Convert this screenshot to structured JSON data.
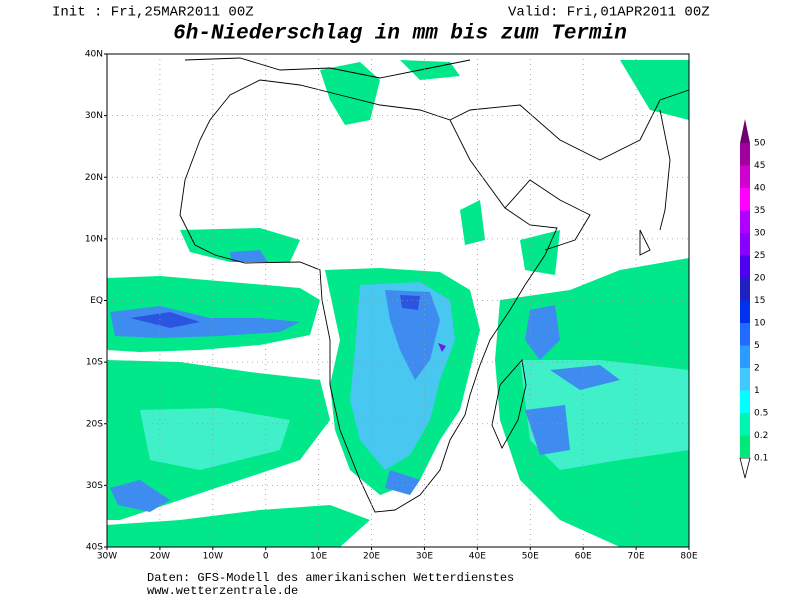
{
  "header": {
    "init": "Init : Fri,25MAR2011 00Z",
    "valid": "Valid: Fri,01APR2011 00Z",
    "title": "6h-Niederschlag in mm bis zum Termin"
  },
  "map": {
    "lon_labels": [
      "30W",
      "20W",
      "10W",
      "0",
      "10E",
      "20E",
      "30E",
      "40E",
      "50E",
      "60E",
      "70E",
      "80E"
    ],
    "lat_labels": [
      "40N",
      "30N",
      "20N",
      "10N",
      "EQ",
      "10S",
      "20S",
      "30S",
      "40S"
    ]
  },
  "legend": {
    "levels": [
      0.1,
      0.2,
      0.5,
      1,
      2,
      5,
      10,
      15,
      20,
      25,
      30,
      35,
      40,
      45,
      50
    ],
    "colors": [
      "#00e878",
      "#00f5b0",
      "#00ffff",
      "#40c8ff",
      "#2a9cff",
      "#1f6cff",
      "#0030f0",
      "#2020c0",
      "#5000f0",
      "#8a00ff",
      "#b000ff",
      "#ff00ff",
      "#d000d0",
      "#a000a0",
      "#700070"
    ]
  },
  "footer": {
    "source": "Daten: GFS-Modell des amerikanischen Wetterdienstes",
    "url": "www.wetterzentrale.de"
  }
}
